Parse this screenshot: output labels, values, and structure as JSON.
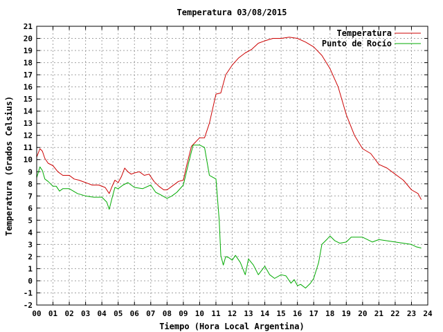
{
  "chart_data": {
    "type": "line",
    "title": "Temperatura 03/08/2015",
    "xlabel": "Tiempo (Hora Local Argentina)",
    "ylabel": "Temperatura (Grados Celsius)",
    "xlim": [
      0,
      24
    ],
    "ylim": [
      -2,
      21
    ],
    "grid": true,
    "legend_position": "top-right",
    "x_tick_labels": [
      "00",
      "01",
      "02",
      "03",
      "04",
      "05",
      "06",
      "07",
      "08",
      "09",
      "10",
      "11",
      "12",
      "13",
      "14",
      "15",
      "16",
      "17",
      "18",
      "19",
      "20",
      "21",
      "22",
      "23",
      "24"
    ],
    "y_ticks": [
      -2,
      -1,
      0,
      1,
      2,
      3,
      4,
      5,
      6,
      7,
      8,
      9,
      10,
      11,
      12,
      13,
      14,
      15,
      16,
      17,
      18,
      19,
      20,
      21
    ],
    "series": [
      {
        "name": "Temperatura",
        "color": "#cc0000",
        "x": [
          0,
          0.2,
          0.35,
          0.5,
          0.7,
          1,
          1.3,
          1.6,
          2,
          2.3,
          2.6,
          3,
          3.4,
          3.8,
          4.2,
          4.45,
          4.6,
          4.8,
          5,
          5.2,
          5.4,
          5.6,
          5.8,
          6,
          6.3,
          6.6,
          6.9,
          7.2,
          7.5,
          7.8,
          8,
          8.3,
          8.7,
          9,
          9.2,
          9.5,
          10,
          10.3,
          10.6,
          11,
          11.3,
          11.6,
          12,
          12.4,
          12.8,
          13.2,
          13.6,
          14,
          14.5,
          15,
          15.5,
          16,
          16.5,
          17,
          17.5,
          18,
          18.5,
          19,
          19.5,
          20,
          20.5,
          21,
          21.5,
          22,
          22.5,
          23,
          23.4,
          23.6
        ],
        "values": [
          10.2,
          10.9,
          10.7,
          10.1,
          9.7,
          9.5,
          9.0,
          8.7,
          8.7,
          8.4,
          8.3,
          8.1,
          7.9,
          7.9,
          7.7,
          7.2,
          7.7,
          8.3,
          8.1,
          8.6,
          9.3,
          9.0,
          8.8,
          8.9,
          9.0,
          8.7,
          8.8,
          8.2,
          7.8,
          7.5,
          7.5,
          7.8,
          8.2,
          8.3,
          9.5,
          11.1,
          11.8,
          11.8,
          13.0,
          15.4,
          15.5,
          17.0,
          17.8,
          18.4,
          18.8,
          19.1,
          19.6,
          19.8,
          20.0,
          20.0,
          20.1,
          20.0,
          19.7,
          19.3,
          18.6,
          17.5,
          16.0,
          13.7,
          12.0,
          10.9,
          10.5,
          9.6,
          9.3,
          8.8,
          8.3,
          7.5,
          7.2,
          6.7
        ]
      },
      {
        "name": "Punto de Rocío",
        "color": "#00aa00",
        "x": [
          0,
          0.2,
          0.35,
          0.5,
          0.7,
          1,
          1.2,
          1.4,
          1.6,
          2,
          2.5,
          3,
          3.5,
          4,
          4.3,
          4.45,
          4.6,
          4.8,
          5,
          5.3,
          5.6,
          5.8,
          6,
          6.5,
          7,
          7.3,
          7.6,
          8,
          8.3,
          8.6,
          9,
          9.3,
          9.6,
          10,
          10.3,
          10.6,
          11,
          11.2,
          11.3,
          11.45,
          11.6,
          11.8,
          12,
          12.2,
          12.5,
          12.8,
          13,
          13.3,
          13.6,
          14,
          14.3,
          14.6,
          15,
          15.3,
          15.6,
          15.8,
          16,
          16.2,
          16.5,
          16.8,
          17,
          17.3,
          17.5,
          17.8,
          18,
          18.3,
          18.6,
          19,
          19.3,
          19.6,
          20,
          20.3,
          20.6,
          21,
          21.5,
          22,
          22.5,
          23,
          23.3,
          23.6
        ],
        "values": [
          8.5,
          9.4,
          9.1,
          8.4,
          8.2,
          7.8,
          7.8,
          7.4,
          7.6,
          7.6,
          7.2,
          7.0,
          6.9,
          6.9,
          6.5,
          5.9,
          6.7,
          7.7,
          7.6,
          7.9,
          8.1,
          7.9,
          7.7,
          7.6,
          7.9,
          7.3,
          7.1,
          6.8,
          7.0,
          7.3,
          7.9,
          9.6,
          11.2,
          11.2,
          11.0,
          8.7,
          8.4,
          5.0,
          2.1,
          1.3,
          2.0,
          1.9,
          1.7,
          2.1,
          1.5,
          0.5,
          1.8,
          1.3,
          0.5,
          1.2,
          0.5,
          0.2,
          0.5,
          0.4,
          -0.2,
          0.1,
          -0.4,
          -0.3,
          -0.6,
          -0.2,
          0.2,
          1.5,
          3.0,
          3.4,
          3.7,
          3.3,
          3.1,
          3.2,
          3.6,
          3.6,
          3.6,
          3.4,
          3.2,
          3.4,
          3.3,
          3.2,
          3.1,
          3.0,
          2.8,
          2.7
        ]
      }
    ]
  }
}
